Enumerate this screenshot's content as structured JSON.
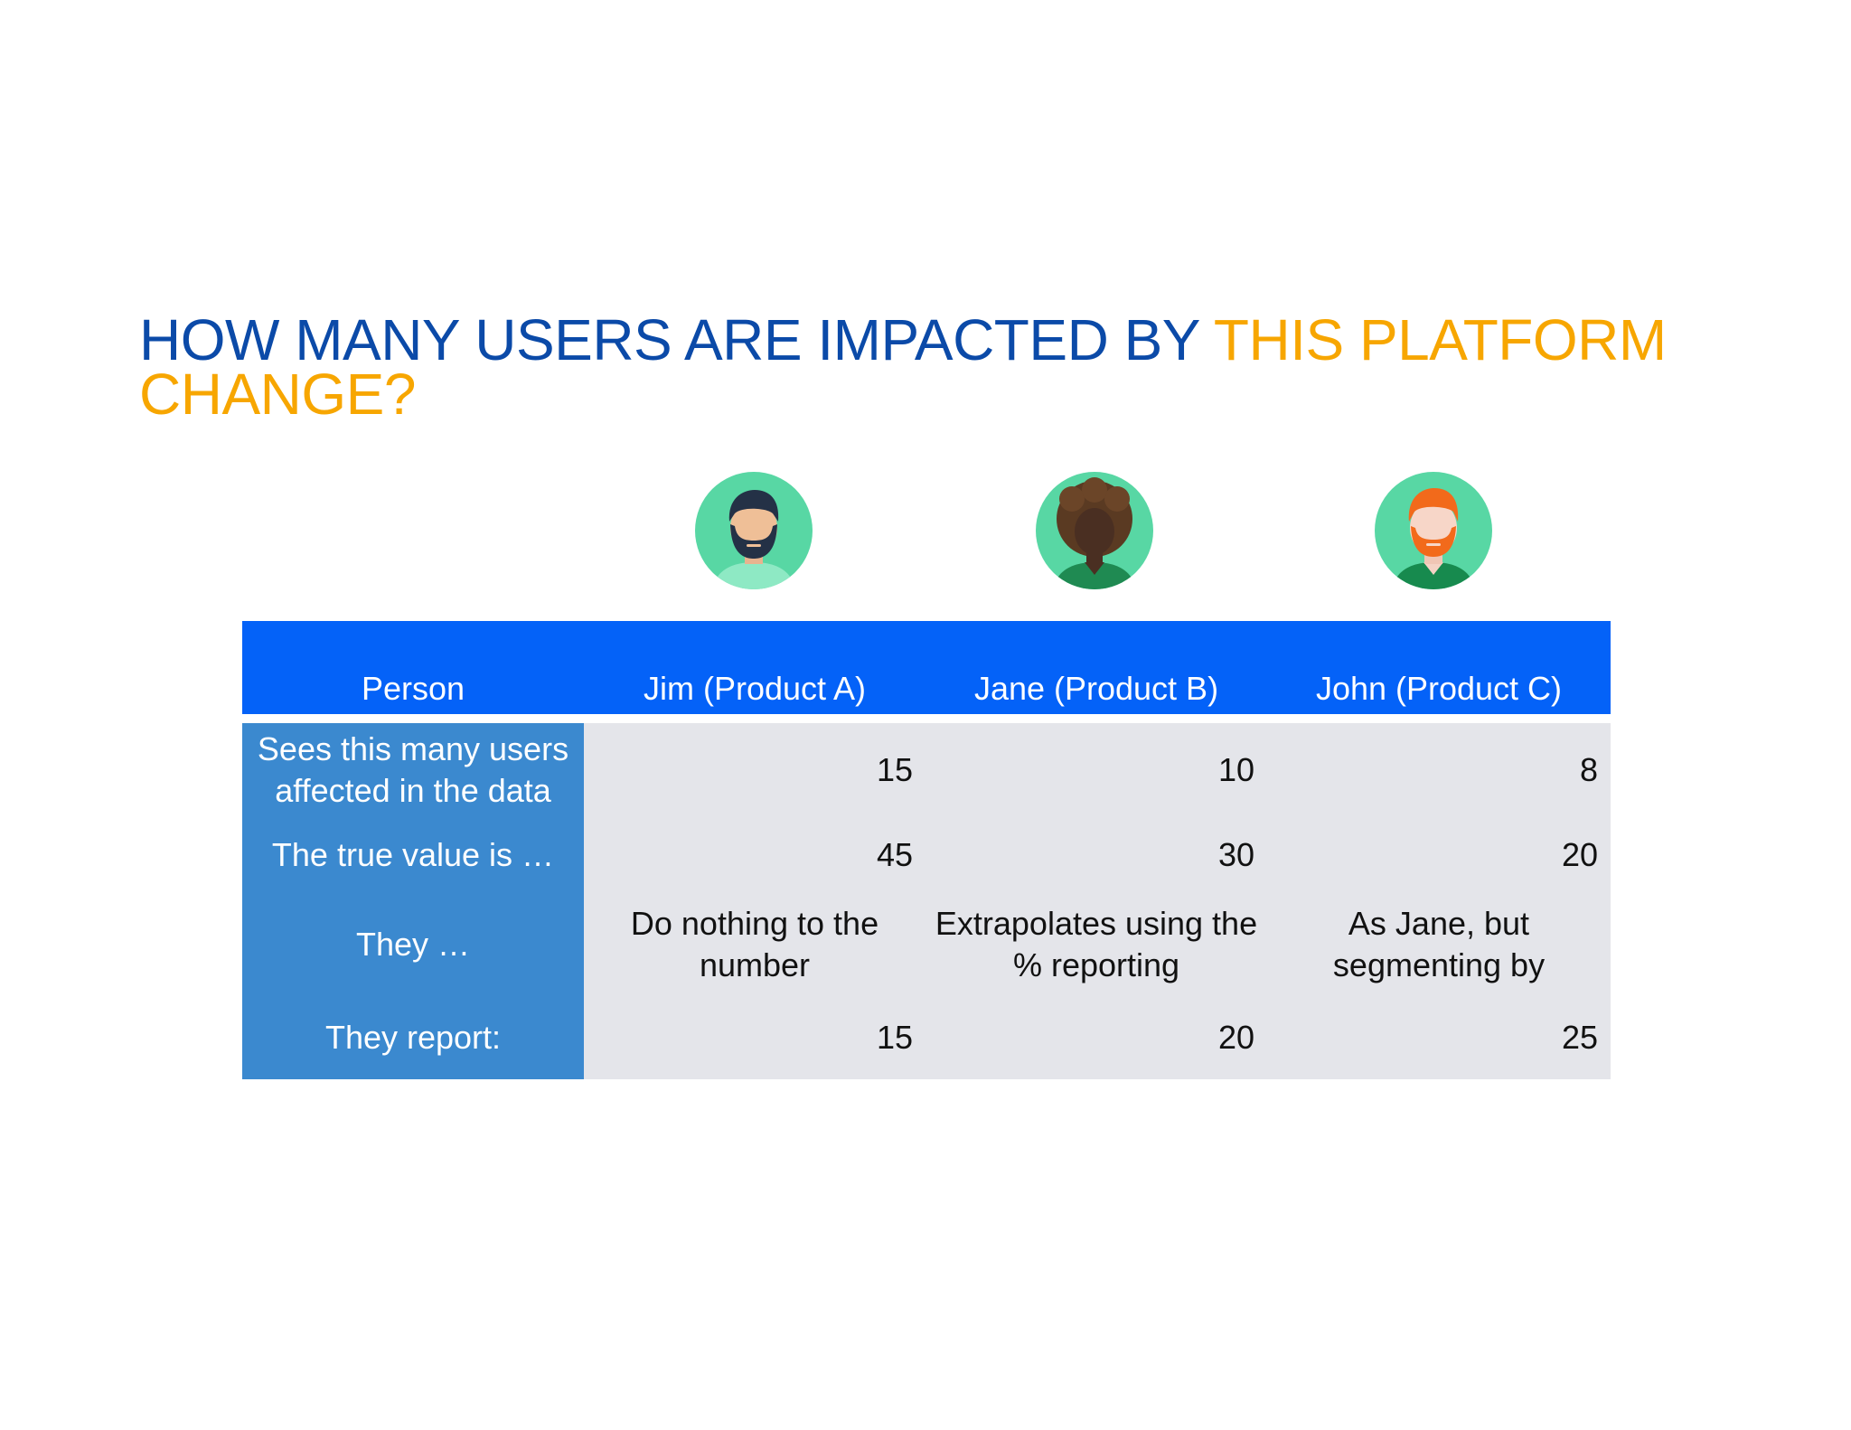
{
  "title": {
    "part1": "HOW MANY USERS ARE IMPACTED BY ",
    "part2": "THIS PLATFORM CHANGE?"
  },
  "avatars": [
    {
      "icon": "bearded-man-avatar-icon"
    },
    {
      "icon": "curly-hair-person-avatar-icon"
    },
    {
      "icon": "red-bearded-man-avatar-icon"
    }
  ],
  "table": {
    "headers": [
      "Person",
      "Jim (Product A)",
      "Jane (Product B)",
      "John (Product C)"
    ],
    "rows": [
      {
        "label": "Sees this many users affected in the data",
        "values": [
          "15",
          "10",
          "8"
        ]
      },
      {
        "label": "The true value is …",
        "values": [
          "45",
          "30",
          "20"
        ]
      },
      {
        "label": "They …",
        "values": [
          "Do nothing to the number",
          "Extrapolates using the % reporting",
          "As Jane, but segmenting by"
        ]
      },
      {
        "label": "They report:",
        "values": [
          "15",
          "20",
          "25"
        ]
      }
    ]
  },
  "colors": {
    "title_blue": "#0b4aa8",
    "title_accent": "#f7a600",
    "header_blue": "#0462f8",
    "row_label_blue": "#3b89cf",
    "cell_grey": "#e4e5ea"
  }
}
